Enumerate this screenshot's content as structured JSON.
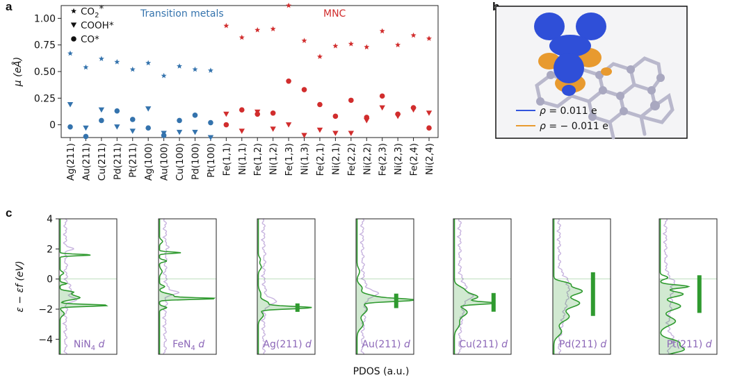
{
  "panel_labels": {
    "a": "a",
    "b": "b",
    "c": "c"
  },
  "colors": {
    "transition_metals": "#3473ad",
    "mnc": "#d12d2d",
    "pdos_fill": "#2f9a2f",
    "pdos_bg_line": "#c8b4df",
    "label_purple": "#8c67b8",
    "density_pos": "#3355dd",
    "density_neg": "#e89a2f"
  },
  "chart_data": [
    {
      "type": "scatter",
      "panel": "a",
      "ylabel": "μ (eÅ)",
      "ylim": [
        -0.12,
        1.12
      ],
      "yticks": [
        0.0,
        0.25,
        0.5,
        0.75,
        1.0
      ],
      "ytick_labels": [
        "0",
        "0.25",
        "0.50",
        "0.75",
        "1.00"
      ],
      "grid": false,
      "legend_position": "top-left",
      "legend": [
        {
          "marker": "star",
          "label": "CO2*"
        },
        {
          "marker": "triangle-down",
          "label": "COOH*"
        },
        {
          "marker": "circle",
          "label": "CO*"
        }
      ],
      "group_labels": {
        "transition_metals": "Transition metals",
        "mnc": "MNC"
      },
      "categories": [
        "Ag(211)",
        "Au(211)",
        "Cu(211)",
        "Pd(211)",
        "Pt(211)",
        "Ag(100)",
        "Au(100)",
        "Cu(100)",
        "Pd(100)",
        "Pt(100)",
        "Fe(1,1)",
        "Ni(1,1)",
        "Fe(1,2)",
        "Ni(1,2)",
        "Fe(1,3)",
        "Ni(1,3)",
        "Fe(2,1)",
        "Ni(2,1)",
        "Fe(2,2)",
        "Ni(2,2)",
        "Fe(2,3)",
        "Ni(2,3)",
        "Fe(2,4)",
        "Ni(2,4)"
      ],
      "category_groups": [
        "tm",
        "tm",
        "tm",
        "tm",
        "tm",
        "tm",
        "tm",
        "tm",
        "tm",
        "tm",
        "mnc",
        "mnc",
        "mnc",
        "mnc",
        "mnc",
        "mnc",
        "mnc",
        "mnc",
        "mnc",
        "mnc",
        "mnc",
        "mnc",
        "mnc",
        "mnc"
      ],
      "series": [
        {
          "name": "CO2*",
          "marker": "star",
          "values": [
            0.67,
            0.54,
            0.62,
            0.59,
            0.52,
            0.58,
            0.46,
            0.55,
            0.52,
            0.51,
            0.93,
            0.82,
            0.89,
            0.9,
            1.12,
            0.79,
            0.64,
            0.74,
            0.76,
            0.73,
            0.88,
            0.75,
            0.84,
            0.81
          ]
        },
        {
          "name": "COOH*",
          "marker": "triangle-down",
          "values": [
            0.19,
            -0.03,
            0.14,
            -0.02,
            -0.06,
            0.15,
            -0.08,
            -0.07,
            -0.07,
            -0.12,
            0.1,
            -0.06,
            0.12,
            -0.04,
            0.0,
            -0.1,
            -0.05,
            -0.08,
            -0.08,
            0.04,
            0.16,
            0.08,
            0.14,
            0.11
          ]
        },
        {
          "name": "CO*",
          "marker": "circle",
          "values": [
            -0.02,
            -0.11,
            0.04,
            0.13,
            0.05,
            -0.03,
            -0.1,
            0.04,
            0.09,
            0.02,
            0.0,
            0.14,
            0.1,
            0.11,
            0.41,
            0.33,
            0.19,
            0.08,
            0.23,
            0.07,
            0.27,
            0.1,
            0.16,
            -0.03
          ]
        }
      ]
    },
    {
      "type": "line",
      "panel": "c",
      "ylabel": "ε − εf (eV)",
      "xlabel": "PDOS (a.u.)",
      "ylim": [
        -5,
        4
      ],
      "yticks": [
        -4,
        -2,
        0,
        2,
        4
      ],
      "ytick_labels": [
        "−4",
        "−2",
        "0",
        "2",
        "4"
      ],
      "subplots": [
        {
          "label_main": "NiN",
          "label_sub": "4",
          "label_tail": "d",
          "band_center": null,
          "peaks": [
            {
              "e": 1.6,
              "h": 0.62,
              "w": 0.07
            },
            {
              "e": -1.25,
              "h": 0.38,
              "w": 0.18
            },
            {
              "e": -1.75,
              "h": 0.95,
              "w": 0.09
            },
            {
              "e": -0.85,
              "h": 0.2,
              "w": 0.1
            },
            {
              "e": -0.3,
              "h": 0.13,
              "w": 0.08
            },
            {
              "e": 0.4,
              "h": 0.07,
              "w": 0.12
            },
            {
              "e": -2.3,
              "h": 0.08,
              "w": 0.2
            },
            {
              "e": -1.0,
              "h": 0.15,
              "w": 0.15
            }
          ]
        },
        {
          "label_main": "FeN",
          "label_sub": "4",
          "label_tail": "d",
          "band_center": null,
          "peaks": [
            {
              "e": 1.75,
              "h": 0.42,
              "w": 0.07
            },
            {
              "e": -1.3,
              "h": 1.05,
              "w": 0.08
            },
            {
              "e": -1.1,
              "h": 0.28,
              "w": 0.18
            },
            {
              "e": 1.2,
              "h": 0.14,
              "w": 0.1
            },
            {
              "e": -1.9,
              "h": 0.14,
              "w": 0.12
            },
            {
              "e": -0.5,
              "h": 0.1,
              "w": 0.12
            },
            {
              "e": 2.5,
              "h": 0.06,
              "w": 0.15
            },
            {
              "e": 0.5,
              "h": 0.05,
              "w": 0.2
            }
          ]
        },
        {
          "label_main": "Ag(211)",
          "label_sub": "",
          "label_tail": "d",
          "band_center": {
            "e": -1.9,
            "half_width": 0.28
          },
          "peaks": [
            {
              "e": -1.9,
              "h": 1.0,
              "w": 0.12
            },
            {
              "e": -1.6,
              "h": 0.2,
              "w": 0.25
            },
            {
              "e": -2.4,
              "h": 0.1,
              "w": 0.3
            },
            {
              "e": -1.0,
              "h": 0.05,
              "w": 0.3
            },
            {
              "e": 0.8,
              "h": 0.06,
              "w": 0.25
            },
            {
              "e": 1.3,
              "h": 0.04,
              "w": 0.2
            }
          ]
        },
        {
          "label_main": "Au(211)",
          "label_sub": "",
          "label_tail": "d",
          "band_center": {
            "e": -1.45,
            "half_width": 0.48
          },
          "peaks": [
            {
              "e": -1.4,
              "h": 0.92,
              "w": 0.14
            },
            {
              "e": -1.2,
              "h": 0.35,
              "w": 0.25
            },
            {
              "e": -2.0,
              "h": 0.2,
              "w": 0.45
            },
            {
              "e": -3.0,
              "h": 0.12,
              "w": 0.4
            },
            {
              "e": -0.6,
              "h": 0.1,
              "w": 0.3
            },
            {
              "e": 0.5,
              "h": 0.05,
              "w": 0.3
            }
          ]
        },
        {
          "label_main": "Cu(211)",
          "label_sub": "",
          "label_tail": "d",
          "band_center": {
            "e": -1.55,
            "half_width": 0.62
          },
          "peaks": [
            {
              "e": -1.6,
              "h": 0.7,
              "w": 0.12
            },
            {
              "e": -1.2,
              "h": 0.45,
              "w": 0.3
            },
            {
              "e": -2.2,
              "h": 0.25,
              "w": 0.4
            },
            {
              "e": -0.7,
              "h": 0.18,
              "w": 0.3
            },
            {
              "e": -3.0,
              "h": 0.1,
              "w": 0.4
            }
          ]
        },
        {
          "label_main": "Pd(211)",
          "label_sub": "",
          "label_tail": "d",
          "band_center": {
            "e": -1.0,
            "half_width": 1.45
          },
          "peaks": [
            {
              "e": -0.8,
              "h": 0.55,
              "w": 0.35
            },
            {
              "e": -1.6,
              "h": 0.5,
              "w": 0.4
            },
            {
              "e": -2.5,
              "h": 0.3,
              "w": 0.45
            },
            {
              "e": -0.3,
              "h": 0.25,
              "w": 0.2
            },
            {
              "e": -3.5,
              "h": 0.15,
              "w": 0.4
            }
          ]
        },
        {
          "label_main": "Pt(211)",
          "label_sub": "",
          "label_tail": "d",
          "band_center": {
            "e": -1.0,
            "half_width": 1.25
          },
          "peaks": [
            {
              "e": -0.5,
              "h": 0.55,
              "w": 0.15
            },
            {
              "e": -1.0,
              "h": 0.45,
              "w": 0.25
            },
            {
              "e": -1.8,
              "h": 0.4,
              "w": 0.35
            },
            {
              "e": -2.8,
              "h": 0.3,
              "w": 0.4
            },
            {
              "e": -4.2,
              "h": 0.35,
              "w": 0.3
            },
            {
              "e": -4.7,
              "h": 0.45,
              "w": 0.3
            },
            {
              "e": 0.1,
              "h": 0.15,
              "w": 0.15
            }
          ]
        }
      ]
    }
  ],
  "density_legend": [
    {
      "sign": "positive",
      "text": "= 0.011 e",
      "symbol": "ρ"
    },
    {
      "sign": "negative",
      "text": "= − 0.011 e",
      "symbol": "ρ"
    }
  ]
}
